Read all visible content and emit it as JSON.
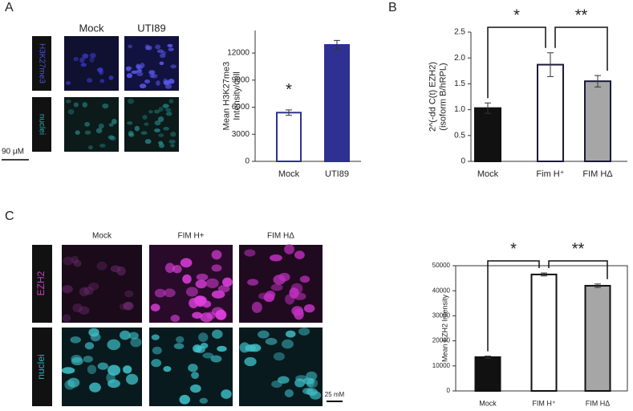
{
  "panels": {
    "a": "A",
    "b": "B",
    "c": "C"
  },
  "panel_a": {
    "columns": [
      "Mock",
      "UTI89"
    ],
    "rows": [
      "H3K27me3",
      "nuclei"
    ],
    "scale_bar": "90 μM"
  },
  "panel_c": {
    "columns": [
      "Mock",
      "FIM H+",
      "FIM HΔ"
    ],
    "rows": [
      "EZH2",
      "nuclei"
    ],
    "scale_bar": "25 mM"
  },
  "chart_data": [
    {
      "type": "bar",
      "y_label": [
        "Mean H3K27me3",
        "Intensity/cell"
      ],
      "categories": [
        "Mock",
        "UTI89"
      ],
      "values": [
        5400,
        12900
      ],
      "errors": [
        300,
        500
      ],
      "colors": [
        "#ffffff",
        "#2e3192"
      ],
      "edge_colors": [
        "#2e3192",
        "#2e3192"
      ],
      "ylim": [
        0,
        14500
      ],
      "yticks": [
        0,
        3000,
        6000,
        9000,
        12000
      ],
      "annotations": [
        "*"
      ]
    },
    {
      "type": "bar",
      "y_label": [
        "2^(-dd C(t) EZH2)",
        "(isoform B/hRPL)"
      ],
      "categories": [
        "Mock",
        "Fim H⁺",
        "FIM HΔ"
      ],
      "values": [
        1.03,
        1.87,
        1.55
      ],
      "errors": [
        0.1,
        0.23,
        0.11
      ],
      "colors": [
        "#111111",
        "#ffffff",
        "#a6a6a6"
      ],
      "edge_colors": [
        "#111111",
        "#1a1a3a",
        "#1a1a3a"
      ],
      "ylim": [
        0,
        2.5
      ],
      "yticks": [
        0,
        0.5,
        {
          "value": 1,
          "label": "1.0"
        },
        1.5,
        {
          "value": 2,
          "label": "2.0"
        },
        2.5
      ],
      "annotations": [
        "*",
        "**"
      ]
    },
    {
      "type": "bar",
      "y_label": [
        "Mean EZH2 Intensity"
      ],
      "categories": [
        "Mock",
        "FIM H⁺",
        "FIM HΔ"
      ],
      "values": [
        13500,
        46500,
        42000
      ],
      "errors": [
        400,
        600,
        700
      ],
      "colors": [
        "#111111",
        "#ffffff",
        "#a6a6a6"
      ],
      "edge_colors": [
        "#111111",
        "#111111",
        "#111111"
      ],
      "ylim": [
        0,
        50000
      ],
      "yticks": [
        0,
        10000,
        20000,
        30000,
        40000,
        50000
      ],
      "annotations": [
        "*",
        "**"
      ]
    }
  ]
}
